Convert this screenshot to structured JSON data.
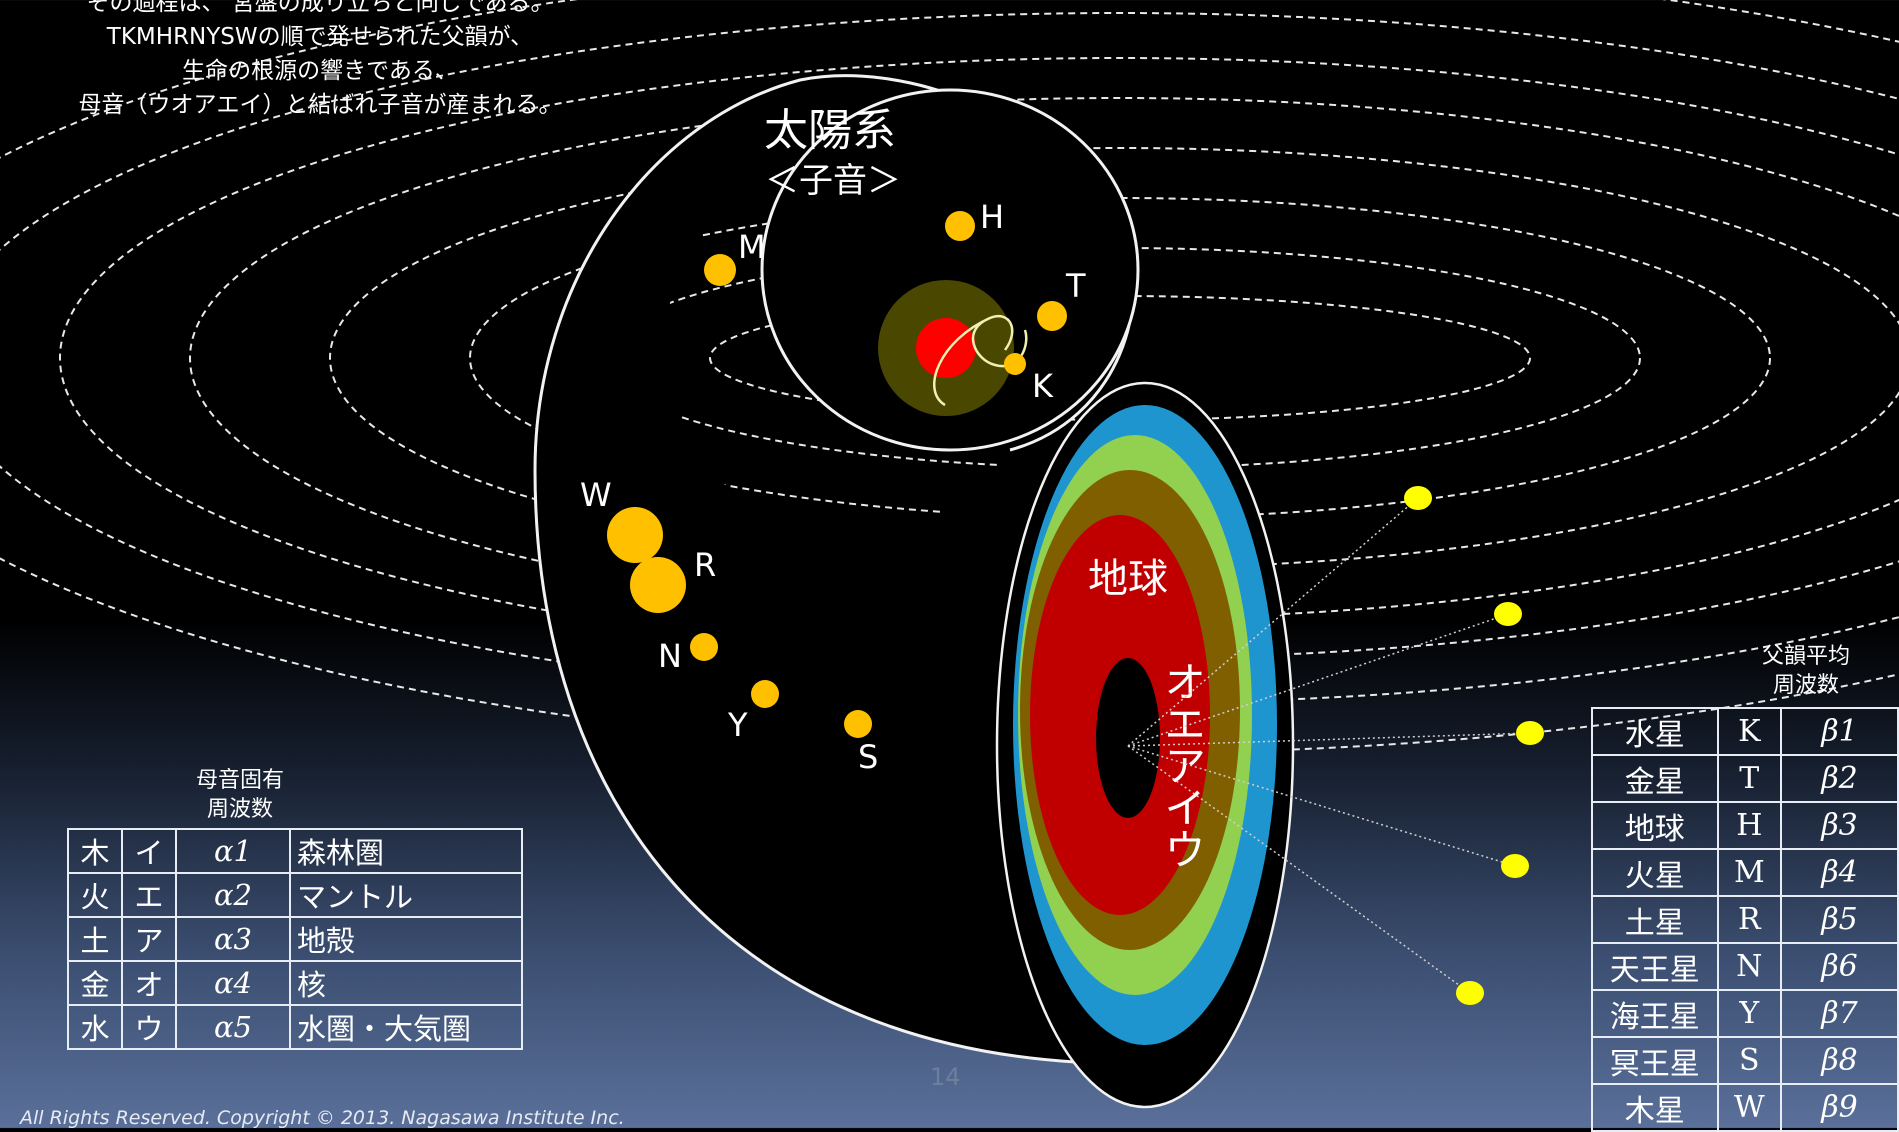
{
  "intro_text": [
    "その過程は、 宮盤の成り立ちと同じである。",
    "TKMHRNYSWの順で発せられた父韻が、",
    "生命の根源の響きである、",
    "母音（ウオアエイ）と結ばれ子音が産まれる。"
  ],
  "diagram": {
    "solar_system_title": "太陽系",
    "solar_system_subtitle": "＜子音＞",
    "earth_label": "地球",
    "vowel_label": "オエアイウ",
    "planets": [
      {
        "letter": "H",
        "color": "#ffc000"
      },
      {
        "letter": "M",
        "color": "#ffc000"
      },
      {
        "letter": "T",
        "color": "#ffc000"
      },
      {
        "letter": "K",
        "color": "#ffc000"
      },
      {
        "letter": "W",
        "color": "#ffc000"
      },
      {
        "letter": "R",
        "color": "#ffc000"
      },
      {
        "letter": "N",
        "color": "#ffc000"
      },
      {
        "letter": "Y",
        "color": "#ffc000"
      },
      {
        "letter": "S",
        "color": "#ffc000"
      }
    ],
    "sun_color": "#ff0000",
    "earth_layer_colors": [
      "#1f95cf",
      "#92d050",
      "#7f5f00",
      "#c00000",
      "#000000"
    ],
    "ray_dot_color": "#ffff00"
  },
  "vowel_table": {
    "header": [
      "母音固有",
      "周波数"
    ],
    "rows": [
      [
        "木",
        "イ",
        "α1",
        "森林圏"
      ],
      [
        "火",
        "エ",
        "α2",
        "マントル"
      ],
      [
        "土",
        "ア",
        "α3",
        "地殻"
      ],
      [
        "金",
        "オ",
        "α4",
        "核"
      ],
      [
        "水",
        "ウ",
        "α5",
        "水圏・大気圏"
      ]
    ]
  },
  "planet_table": {
    "header": [
      "父韻平均",
      "周波数"
    ],
    "rows": [
      [
        "水星",
        "K",
        "β1"
      ],
      [
        "金星",
        "T",
        "β2"
      ],
      [
        "地球",
        "H",
        "β3"
      ],
      [
        "火星",
        "M",
        "β4"
      ],
      [
        "土星",
        "R",
        "β5"
      ],
      [
        "天王星",
        "N",
        "β6"
      ],
      [
        "海王星",
        "Y",
        "β7"
      ],
      [
        "冥王星",
        "S",
        "β8"
      ],
      [
        "木星",
        "W",
        "β9"
      ]
    ]
  },
  "page_number": "14",
  "copyright": "All Rights Reserved. Copyright © 2013. Nagasawa Institute Inc."
}
